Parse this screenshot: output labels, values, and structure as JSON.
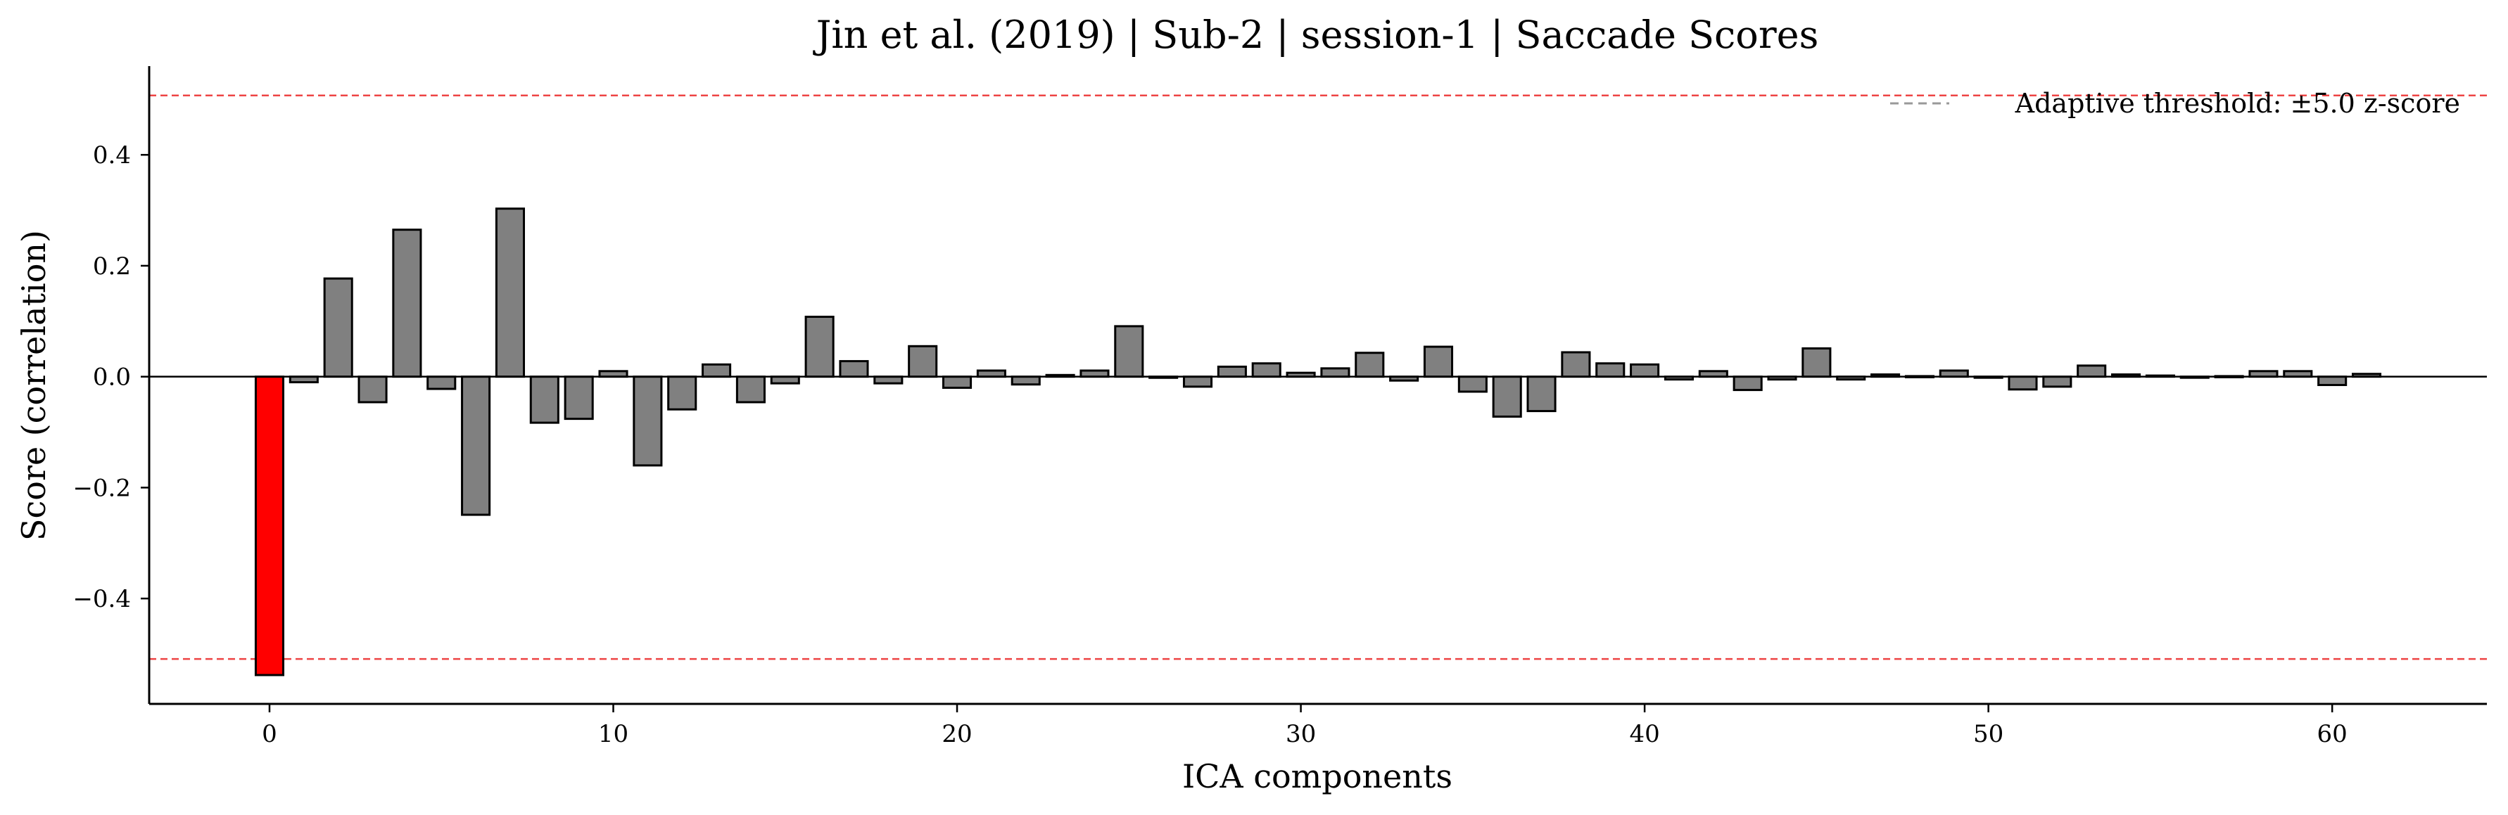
{
  "chart_data": {
    "type": "bar",
    "title": "Jin et al. (2019) | Sub-2 | session-1 | Saccade Scores",
    "xlabel": "ICA components",
    "ylabel": "Score (correlation)",
    "xlim": [
      -3.5,
      64.5
    ],
    "ylim": [
      -0.59,
      0.56
    ],
    "xticks": [
      0,
      10,
      20,
      30,
      40,
      50,
      60
    ],
    "yticks": [
      -0.4,
      -0.2,
      0.0,
      0.2,
      0.4
    ],
    "ytick_labels": [
      "−0.4",
      "−0.2",
      "0.0",
      "0.2",
      "0.4"
    ],
    "threshold_upper": 0.507,
    "threshold_lower": -0.509,
    "legend": {
      "label": "Adaptive threshold: ±5.0 z-score",
      "placement": "top-right"
    },
    "grid": false,
    "bar_color": "#808080",
    "highlight_color": "#ff0000",
    "highlighted_indices": [
      0
    ],
    "threshold_color": "#ee4444",
    "x": [
      0,
      1,
      2,
      3,
      4,
      5,
      6,
      7,
      8,
      9,
      10,
      11,
      12,
      13,
      14,
      15,
      16,
      17,
      18,
      19,
      20,
      21,
      22,
      23,
      24,
      25,
      26,
      27,
      28,
      29,
      30,
      31,
      32,
      33,
      34,
      35,
      36,
      37,
      38,
      39,
      40,
      41,
      42,
      43,
      44,
      45,
      46,
      47,
      48,
      49,
      50,
      51,
      52,
      53,
      54,
      55,
      56,
      57,
      58,
      59,
      60,
      61
    ],
    "values": [
      -0.538,
      -0.01,
      0.177,
      -0.046,
      0.265,
      -0.022,
      -0.249,
      0.303,
      -0.083,
      -0.076,
      0.01,
      -0.16,
      -0.059,
      0.022,
      -0.046,
      -0.012,
      0.108,
      0.028,
      -0.012,
      0.055,
      -0.02,
      0.011,
      -0.014,
      0.003,
      0.011,
      0.091,
      -0.002,
      -0.018,
      0.018,
      0.024,
      0.007,
      0.015,
      0.043,
      -0.007,
      0.054,
      -0.027,
      -0.072,
      -0.062,
      0.044,
      0.024,
      0.022,
      -0.005,
      0.01,
      -0.024,
      -0.005,
      0.051,
      -0.005,
      0.004,
      0.001,
      0.011,
      -0.001,
      -0.023,
      -0.018,
      0.02,
      0.004,
      0.002,
      -0.001,
      0.001,
      0.01,
      0.01,
      -0.015,
      0.005
    ]
  }
}
